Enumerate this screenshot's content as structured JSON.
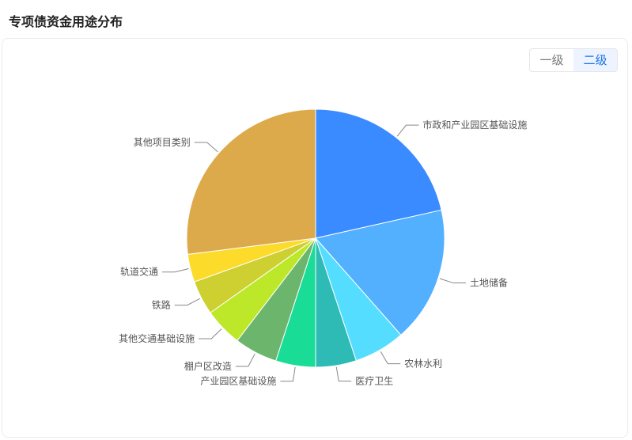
{
  "header": {
    "title": "专项债资金用途分布"
  },
  "level_toggle": {
    "options": [
      "一级",
      "二级"
    ],
    "selected": "二级",
    "accent": "#1a73e8"
  },
  "chart_data": {
    "type": "pie",
    "start": "top, clockwise",
    "categories": [
      "市政和产业园区基础设施",
      "土地储备",
      "农林水利",
      "医疗卫生",
      "产业园区基础设施",
      "棚户区改造",
      "其他交通基础设施",
      "铁路",
      "轨道交通",
      "其他项目类别"
    ],
    "values": [
      21.5,
      17.0,
      6.4,
      5.1,
      5.0,
      5.4,
      4.8,
      4.3,
      3.5,
      27.0
    ],
    "unit": "%",
    "colors": [
      "#3a8bff",
      "#52b0ff",
      "#55ddff",
      "#2ebbb5",
      "#19dc96",
      "#6cb56c",
      "#bde82a",
      "#cdd030",
      "#fddb2a",
      "#dcaa4a"
    ]
  }
}
